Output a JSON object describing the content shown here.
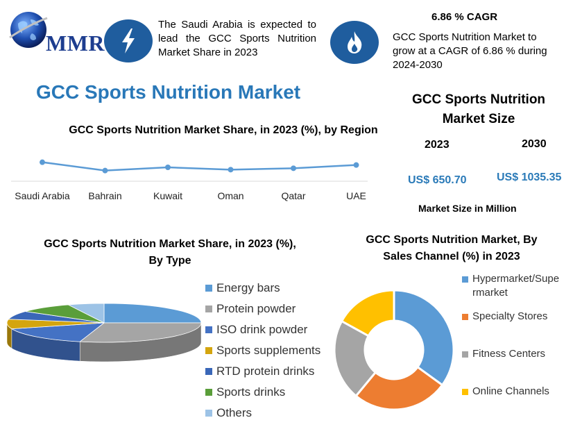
{
  "header": {
    "logo_text": "MMR",
    "highlight": {
      "icon": "lightning-icon",
      "text": "The Saudi Arabia is expected to lead the GCC Sports Nutrition Market Share in 2023"
    },
    "cagr": {
      "icon": "flame-icon",
      "title": "6.86 % CAGR",
      "text": "GCC Sports Nutrition Market to grow at a CAGR of 6.86 % during 2024-2030"
    }
  },
  "main_title": "GCC Sports Nutrition Market",
  "market_size": {
    "title": "GCC Sports Nutrition Market Size",
    "years": [
      "2023",
      "2030"
    ],
    "values": [
      "US$ 650.70",
      "US$ 1035.35"
    ],
    "note": "Market Size in Million"
  },
  "colors": {
    "accent": "#2978b8",
    "line": "#5b9bd5",
    "icon_bg": "#1f5d9e"
  },
  "chart_data": [
    {
      "type": "line",
      "title": "GCC Sports Nutrition Market Share, in 2023 (%), by Region",
      "categories": [
        "Saudi Arabia",
        "Bahrain",
        "Kuwait",
        "Oman",
        "Qatar",
        "UAE"
      ],
      "series": [
        {
          "values": [
            38,
            20,
            27,
            22,
            25,
            32
          ]
        }
      ],
      "ylim": [
        0,
        60
      ],
      "grid": false,
      "legend": "none"
    },
    {
      "type": "pie",
      "title": "GCC Sports Nutrition Market Share, in 2023 (%), By Type",
      "labels": [
        "Energy bars",
        "Protein powder",
        "ISO drink powder",
        "Sports supplements",
        "RTD protein drinks",
        "Sports drinks",
        "Others"
      ],
      "values": [
        25,
        29,
        16,
        8,
        7,
        9,
        6
      ],
      "colors": [
        "#5b9bd5",
        "#a5a5a5",
        "#4472c4",
        "#d4a50e",
        "#3a67b8",
        "#5a9e3a",
        "#9dc3e6"
      ],
      "legend": "right"
    },
    {
      "type": "pie",
      "title": "GCC Sports Nutrition Market, By Sales Channel (%) in 2023",
      "labels": [
        "Hypermarket/Supermarket",
        "Specialty Stores",
        "Fitness Centers",
        "Online Channels"
      ],
      "label_lines": [
        [
          "Hypermarket/Supe",
          "rmarket"
        ],
        [
          "Specialty Stores"
        ],
        [
          "Fitness Centers"
        ],
        [
          "Online Channels"
        ]
      ],
      "values": [
        35,
        26,
        22,
        17
      ],
      "colors": [
        "#5b9bd5",
        "#ed7d31",
        "#a5a5a5",
        "#ffc000"
      ],
      "legend": "right"
    }
  ]
}
